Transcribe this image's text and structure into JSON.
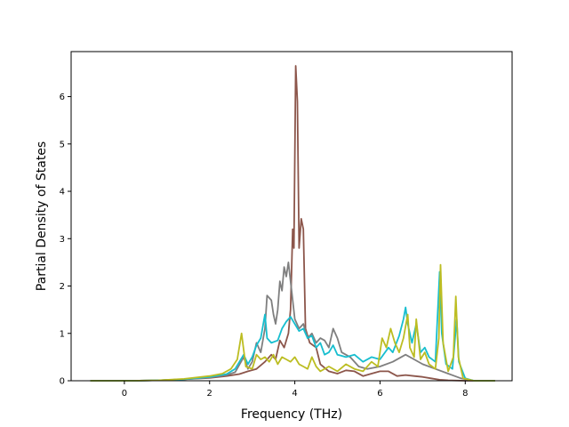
{
  "chart_data": {
    "type": "line",
    "title": "",
    "xlabel": "Frequency (THz)",
    "ylabel": "Partial Density of States",
    "xlim": [
      -1.25,
      9.1
    ],
    "ylim": [
      0,
      6.95
    ],
    "xticks": [
      0,
      2,
      4,
      6,
      8
    ],
    "yticks": [
      0,
      1,
      2,
      3,
      4,
      5,
      6
    ],
    "grid": false,
    "legend": "none",
    "series": [
      {
        "color": "#8c564b",
        "points": [
          [
            -0.8,
            0
          ],
          [
            0.2,
            0
          ],
          [
            0.8,
            0.01
          ],
          [
            1.4,
            0.03
          ],
          [
            2.0,
            0.06
          ],
          [
            2.4,
            0.1
          ],
          [
            2.7,
            0.14
          ],
          [
            2.9,
            0.2
          ],
          [
            3.1,
            0.25
          ],
          [
            3.3,
            0.4
          ],
          [
            3.45,
            0.55
          ],
          [
            3.55,
            0.45
          ],
          [
            3.65,
            0.85
          ],
          [
            3.75,
            0.7
          ],
          [
            3.85,
            1.0
          ],
          [
            3.9,
            1.5
          ],
          [
            3.95,
            3.2
          ],
          [
            3.98,
            2.8
          ],
          [
            4.02,
            6.65
          ],
          [
            4.06,
            5.9
          ],
          [
            4.1,
            2.8
          ],
          [
            4.15,
            3.42
          ],
          [
            4.2,
            3.2
          ],
          [
            4.25,
            1.1
          ],
          [
            4.35,
            0.8
          ],
          [
            4.5,
            0.7
          ],
          [
            4.6,
            0.35
          ],
          [
            4.8,
            0.2
          ],
          [
            5.0,
            0.15
          ],
          [
            5.2,
            0.22
          ],
          [
            5.4,
            0.2
          ],
          [
            5.6,
            0.1
          ],
          [
            5.8,
            0.15
          ],
          [
            6.0,
            0.2
          ],
          [
            6.2,
            0.2
          ],
          [
            6.4,
            0.1
          ],
          [
            6.6,
            0.12
          ],
          [
            6.8,
            0.1
          ],
          [
            7.0,
            0.08
          ],
          [
            7.2,
            0.05
          ],
          [
            7.4,
            0.02
          ],
          [
            7.6,
            0.01
          ],
          [
            8.0,
            0
          ],
          [
            8.7,
            0
          ]
        ]
      },
      {
        "color": "#7f7f7f",
        "points": [
          [
            -0.8,
            0
          ],
          [
            0.2,
            0
          ],
          [
            0.8,
            0.01
          ],
          [
            1.4,
            0.03
          ],
          [
            2.0,
            0.07
          ],
          [
            2.4,
            0.12
          ],
          [
            2.6,
            0.18
          ],
          [
            2.8,
            0.5
          ],
          [
            2.9,
            0.25
          ],
          [
            3.0,
            0.4
          ],
          [
            3.1,
            0.8
          ],
          [
            3.2,
            0.6
          ],
          [
            3.3,
            1.1
          ],
          [
            3.35,
            1.8
          ],
          [
            3.45,
            1.7
          ],
          [
            3.5,
            1.4
          ],
          [
            3.55,
            1.2
          ],
          [
            3.6,
            1.5
          ],
          [
            3.65,
            2.1
          ],
          [
            3.7,
            1.9
          ],
          [
            3.75,
            2.4
          ],
          [
            3.8,
            2.2
          ],
          [
            3.85,
            2.5
          ],
          [
            3.9,
            2.1
          ],
          [
            3.95,
            1.7
          ],
          [
            4.0,
            1.3
          ],
          [
            4.1,
            1.1
          ],
          [
            4.2,
            1.2
          ],
          [
            4.3,
            0.9
          ],
          [
            4.4,
            1.0
          ],
          [
            4.5,
            0.8
          ],
          [
            4.6,
            0.9
          ],
          [
            4.7,
            0.85
          ],
          [
            4.8,
            0.7
          ],
          [
            4.9,
            1.1
          ],
          [
            5.0,
            0.9
          ],
          [
            5.1,
            0.6
          ],
          [
            5.3,
            0.5
          ],
          [
            5.5,
            0.3
          ],
          [
            5.7,
            0.25
          ],
          [
            6.0,
            0.3
          ],
          [
            6.3,
            0.4
          ],
          [
            6.6,
            0.55
          ],
          [
            6.8,
            0.45
          ],
          [
            7.0,
            0.35
          ],
          [
            7.3,
            0.25
          ],
          [
            7.6,
            0.15
          ],
          [
            7.9,
            0.05
          ],
          [
            8.2,
            0
          ],
          [
            8.7,
            0
          ]
        ]
      },
      {
        "color": "#17becf",
        "points": [
          [
            -0.8,
            0
          ],
          [
            0.2,
            0
          ],
          [
            0.8,
            0.01
          ],
          [
            1.4,
            0.03
          ],
          [
            2.0,
            0.08
          ],
          [
            2.4,
            0.14
          ],
          [
            2.6,
            0.25
          ],
          [
            2.8,
            0.55
          ],
          [
            2.9,
            0.35
          ],
          [
            3.0,
            0.5
          ],
          [
            3.1,
            0.75
          ],
          [
            3.2,
            0.9
          ],
          [
            3.3,
            1.4
          ],
          [
            3.35,
            0.9
          ],
          [
            3.45,
            0.8
          ],
          [
            3.6,
            0.85
          ],
          [
            3.7,
            1.1
          ],
          [
            3.8,
            1.25
          ],
          [
            3.9,
            1.35
          ],
          [
            4.0,
            1.2
          ],
          [
            4.1,
            1.05
          ],
          [
            4.2,
            1.1
          ],
          [
            4.3,
            0.9
          ],
          [
            4.4,
            0.95
          ],
          [
            4.5,
            0.7
          ],
          [
            4.6,
            0.8
          ],
          [
            4.7,
            0.55
          ],
          [
            4.8,
            0.6
          ],
          [
            4.9,
            0.75
          ],
          [
            5.0,
            0.55
          ],
          [
            5.2,
            0.5
          ],
          [
            5.4,
            0.55
          ],
          [
            5.6,
            0.4
          ],
          [
            5.8,
            0.5
          ],
          [
            6.0,
            0.45
          ],
          [
            6.2,
            0.7
          ],
          [
            6.3,
            0.6
          ],
          [
            6.45,
            0.95
          ],
          [
            6.55,
            1.3
          ],
          [
            6.6,
            1.55
          ],
          [
            6.65,
            1.2
          ],
          [
            6.75,
            0.8
          ],
          [
            6.85,
            1.2
          ],
          [
            6.95,
            0.6
          ],
          [
            7.05,
            0.7
          ],
          [
            7.15,
            0.5
          ],
          [
            7.3,
            0.4
          ],
          [
            7.4,
            2.3
          ],
          [
            7.45,
            1.0
          ],
          [
            7.55,
            0.35
          ],
          [
            7.7,
            0.25
          ],
          [
            7.8,
            1.3
          ],
          [
            7.85,
            0.4
          ],
          [
            8.0,
            0.05
          ],
          [
            8.2,
            0
          ],
          [
            8.7,
            0
          ]
        ]
      },
      {
        "color": "#bcbd22",
        "points": [
          [
            -0.8,
            0
          ],
          [
            0.2,
            0
          ],
          [
            0.8,
            0.01
          ],
          [
            1.4,
            0.04
          ],
          [
            2.0,
            0.1
          ],
          [
            2.3,
            0.15
          ],
          [
            2.5,
            0.25
          ],
          [
            2.65,
            0.45
          ],
          [
            2.75,
            1.0
          ],
          [
            2.85,
            0.3
          ],
          [
            3.0,
            0.25
          ],
          [
            3.1,
            0.55
          ],
          [
            3.2,
            0.45
          ],
          [
            3.3,
            0.5
          ],
          [
            3.4,
            0.4
          ],
          [
            3.5,
            0.55
          ],
          [
            3.6,
            0.35
          ],
          [
            3.7,
            0.5
          ],
          [
            3.8,
            0.45
          ],
          [
            3.9,
            0.4
          ],
          [
            4.0,
            0.5
          ],
          [
            4.1,
            0.35
          ],
          [
            4.2,
            0.3
          ],
          [
            4.3,
            0.25
          ],
          [
            4.4,
            0.5
          ],
          [
            4.5,
            0.3
          ],
          [
            4.6,
            0.2
          ],
          [
            4.8,
            0.3
          ],
          [
            5.0,
            0.2
          ],
          [
            5.2,
            0.35
          ],
          [
            5.4,
            0.25
          ],
          [
            5.6,
            0.2
          ],
          [
            5.8,
            0.4
          ],
          [
            5.95,
            0.3
          ],
          [
            6.05,
            0.9
          ],
          [
            6.15,
            0.7
          ],
          [
            6.25,
            1.1
          ],
          [
            6.35,
            0.8
          ],
          [
            6.45,
            0.6
          ],
          [
            6.55,
            0.9
          ],
          [
            6.65,
            1.4
          ],
          [
            6.7,
            0.7
          ],
          [
            6.8,
            0.5
          ],
          [
            6.85,
            1.3
          ],
          [
            6.95,
            0.45
          ],
          [
            7.05,
            0.6
          ],
          [
            7.15,
            0.35
          ],
          [
            7.3,
            0.25
          ],
          [
            7.38,
            0.9
          ],
          [
            7.42,
            2.45
          ],
          [
            7.48,
            0.8
          ],
          [
            7.6,
            0.2
          ],
          [
            7.72,
            0.5
          ],
          [
            7.78,
            1.78
          ],
          [
            7.84,
            0.5
          ],
          [
            7.95,
            0.05
          ],
          [
            8.2,
            0
          ],
          [
            8.7,
            0
          ]
        ]
      }
    ]
  }
}
